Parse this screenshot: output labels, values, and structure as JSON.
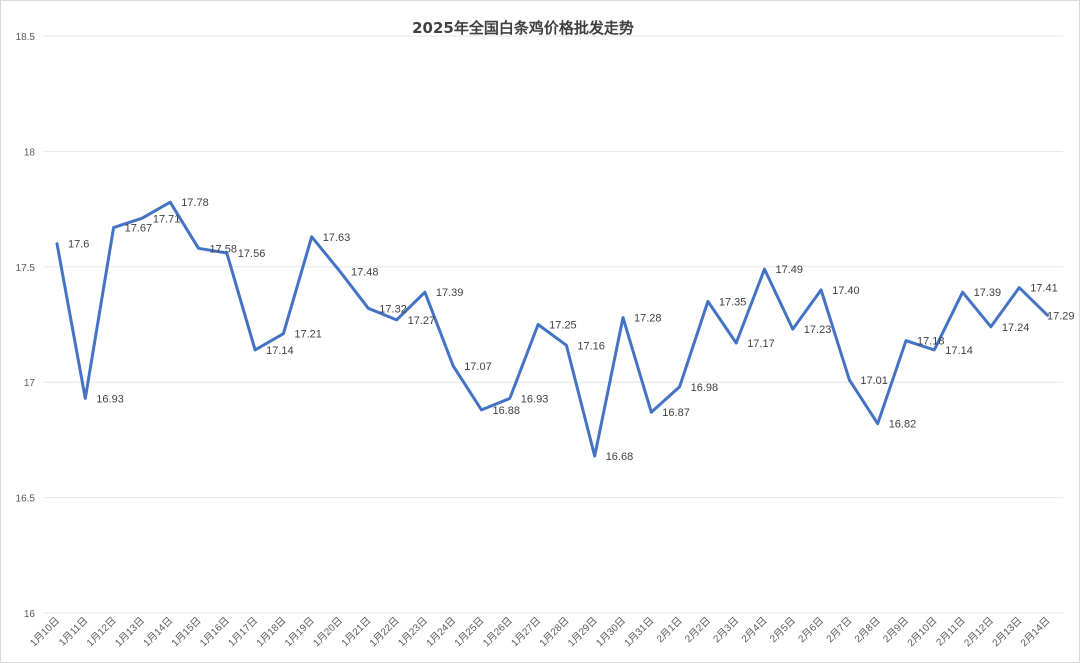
{
  "chart_data": {
    "type": "line",
    "title": "2025年全国白条鸡价格批发走势",
    "xlabel": "",
    "ylabel": "",
    "ylim": [
      16,
      18.5
    ],
    "yticks": [
      "16",
      "16.5",
      "17",
      "17.5",
      "18",
      "18.5"
    ],
    "grid": true,
    "line_color": "#4472c4",
    "categories": [
      "1月10日",
      "1月11日",
      "1月12日",
      "1月13日",
      "1月14日",
      "1月15日",
      "1月16日",
      "1月17日",
      "1月18日",
      "1月19日",
      "1月20日",
      "1月21日",
      "1月22日",
      "1月23日",
      "1月24日",
      "1月25日",
      "1月26日",
      "1月27日",
      "1月28日",
      "1月29日",
      "1月30日",
      "1月31日",
      "2月1日",
      "2月2日",
      "2月3日",
      "2月4日",
      "2月5日",
      "2月6日",
      "2月7日",
      "2月8日",
      "2月9日",
      "2月10日",
      "2月11日",
      "2月12日",
      "2月13日",
      "2月14日"
    ],
    "values": [
      17.6,
      16.93,
      17.67,
      17.71,
      17.78,
      17.58,
      17.56,
      17.14,
      17.21,
      17.63,
      17.48,
      17.32,
      17.27,
      17.39,
      17.07,
      16.88,
      16.93,
      17.25,
      17.16,
      16.68,
      17.28,
      16.87,
      16.98,
      17.35,
      17.17,
      17.49,
      17.23,
      17.4,
      17.01,
      16.82,
      17.18,
      17.14,
      17.39,
      17.24,
      17.41,
      17.29
    ],
    "labels": [
      "17.6",
      "16.93",
      "17.67",
      "17.71",
      "17.78",
      "17.58",
      "17.56",
      "17.14",
      "17.21",
      "17.63",
      "17.48",
      "17.32",
      "17.27",
      "17.39",
      "17.07",
      "16.88",
      "16.93",
      "17.25",
      "17.16",
      "16.68",
      "17.28",
      "16.87",
      "16.98",
      "17.35",
      "17.17",
      "17.49",
      "17.23",
      "17.40",
      "17.01",
      "16.82",
      "17.18",
      "17.14",
      "17.39",
      "17.24",
      "17.41",
      "17.29"
    ]
  }
}
